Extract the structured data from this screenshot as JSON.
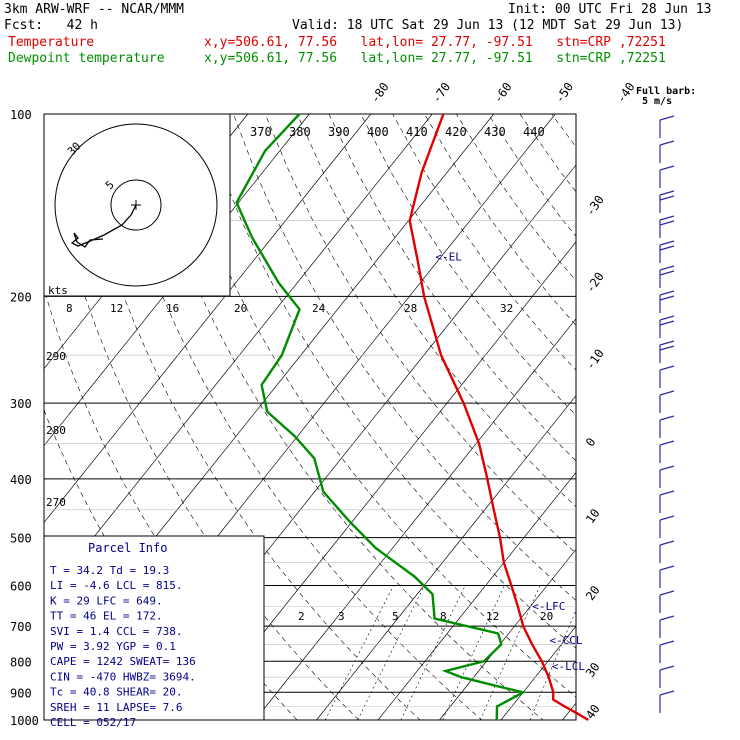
{
  "header": {
    "model": "3km ARW-WRF -- NCAR/MMM",
    "init": "Init: 00 UTC Fri 28 Jun 13",
    "fcst": "Fcst:   42 h",
    "valid": "Valid: 18 UTC Sat 29 Jun 13 (12 MDT Sat 29 Jun 13)",
    "temp_label": "Temperature",
    "temp_info": "x,y=506.61, 77.56   lat,lon= 27.77, -97.51   stn=CRP ,72251",
    "dew_label": "Dewpoint temperature",
    "dew_info": "x,y=506.61, 77.56   lat,lon= 27.77, -97.51   stn=CRP ,72251"
  },
  "barb_legend": {
    "title": "Full barb:",
    "value": "5 m/s"
  },
  "colors": {
    "temperature": "#e00000",
    "dewpoint": "#008c00",
    "barb": "#2a2aa0",
    "text": "#000000",
    "parcel": "#00008b"
  },
  "chart_data": {
    "type": "line",
    "subtype": "skew-T log-p diagram",
    "pressure_levels": [
      100,
      200,
      300,
      400,
      500,
      600,
      700,
      800,
      900,
      1000
    ],
    "isotherm_labels": [
      -80,
      -70,
      -60,
      -50,
      -40,
      -30,
      -20,
      -10,
      0,
      10,
      20,
      30,
      40
    ],
    "theta_e_labels": [
      370,
      380,
      390,
      400,
      410,
      420,
      430,
      440
    ],
    "theta_labels": [
      290,
      280,
      270
    ],
    "mixing_ratio_labels": [
      2,
      3,
      5,
      8,
      12,
      20
    ],
    "hodo_speed_labels": [
      8,
      12,
      16,
      20,
      24,
      28,
      32
    ],
    "hodo_ring_label": "30",
    "hodo_inner_label": "5",
    "hodo_units": "kts",
    "series": [
      {
        "name": "Temperature",
        "points": [
          {
            "p": 1000,
            "t": 34.2
          },
          {
            "p": 975,
            "t": 31.5
          },
          {
            "p": 950,
            "t": 28.6
          },
          {
            "p": 925,
            "t": 25.8
          },
          {
            "p": 900,
            "t": 24.9
          },
          {
            "p": 850,
            "t": 22.2
          },
          {
            "p": 800,
            "t": 19.0
          },
          {
            "p": 750,
            "t": 15.2
          },
          {
            "p": 700,
            "t": 11.4
          },
          {
            "p": 650,
            "t": 8.0
          },
          {
            "p": 600,
            "t": 4.2
          },
          {
            "p": 550,
            "t": 0.0
          },
          {
            "p": 500,
            "t": -3.9
          },
          {
            "p": 450,
            "t": -8.5
          },
          {
            "p": 400,
            "t": -13.6
          },
          {
            "p": 350,
            "t": -19.5
          },
          {
            "p": 300,
            "t": -27.3
          },
          {
            "p": 250,
            "t": -37.2
          },
          {
            "p": 200,
            "t": -47.6
          },
          {
            "p": 175,
            "t": -53.2
          },
          {
            "p": 150,
            "t": -59.8
          },
          {
            "p": 125,
            "t": -64.1
          },
          {
            "p": 100,
            "t": -68.2
          }
        ]
      },
      {
        "name": "Dewpoint temperature",
        "points": [
          {
            "p": 1000,
            "t": 19.3
          },
          {
            "p": 950,
            "t": 17.6
          },
          {
            "p": 900,
            "t": 20.0
          },
          {
            "p": 880,
            "t": 15.2
          },
          {
            "p": 850,
            "t": 8.0
          },
          {
            "p": 830,
            "t": 4.6
          },
          {
            "p": 800,
            "t": 9.6
          },
          {
            "p": 750,
            "t": 10.2
          },
          {
            "p": 720,
            "t": 8.3
          },
          {
            "p": 680,
            "t": -4.0
          },
          {
            "p": 620,
            "t": -7.5
          },
          {
            "p": 580,
            "t": -12.7
          },
          {
            "p": 520,
            "t": -22.8
          },
          {
            "p": 470,
            "t": -30.5
          },
          {
            "p": 420,
            "t": -38.6
          },
          {
            "p": 370,
            "t": -44.4
          },
          {
            "p": 340,
            "t": -50.5
          },
          {
            "p": 310,
            "t": -58.1
          },
          {
            "p": 280,
            "t": -62.5
          },
          {
            "p": 250,
            "t": -63.1
          },
          {
            "p": 210,
            "t": -66.2
          },
          {
            "p": 190,
            "t": -73.0
          },
          {
            "p": 160,
            "t": -83.2
          },
          {
            "p": 140,
            "t": -90.3
          },
          {
            "p": 115,
            "t": -92.4
          },
          {
            "p": 100,
            "t": -91.6
          }
        ]
      }
    ],
    "markers": [
      {
        "label": "<-EL",
        "p": 172
      },
      {
        "label": "<-LFC",
        "p": 649
      },
      {
        "label": "<-CCL",
        "p": 738
      },
      {
        "label": "<-LCL",
        "p": 815
      }
    ]
  },
  "parcel_info": {
    "title": "Parcel Info",
    "lines": [
      "T   =  34.2  Td =  19.3",
      "LI  =  -4.6  LCL =  815.",
      "K   =    29  LFC =  649.",
      "TT  =    46  EL  =  172.",
      "SVI =   1.4  CCL =  738.",
      "PW  =  3.92  YGP =   0.1",
      "CAPE =  1242  SWEAT=   136",
      "CIN  =  -470  HWBZ= 3694.",
      "Tc   =  40.8  SHEAR=  20.",
      "SREH =    11  LAPSE=   7.6",
      "CELL = 052/17"
    ]
  }
}
